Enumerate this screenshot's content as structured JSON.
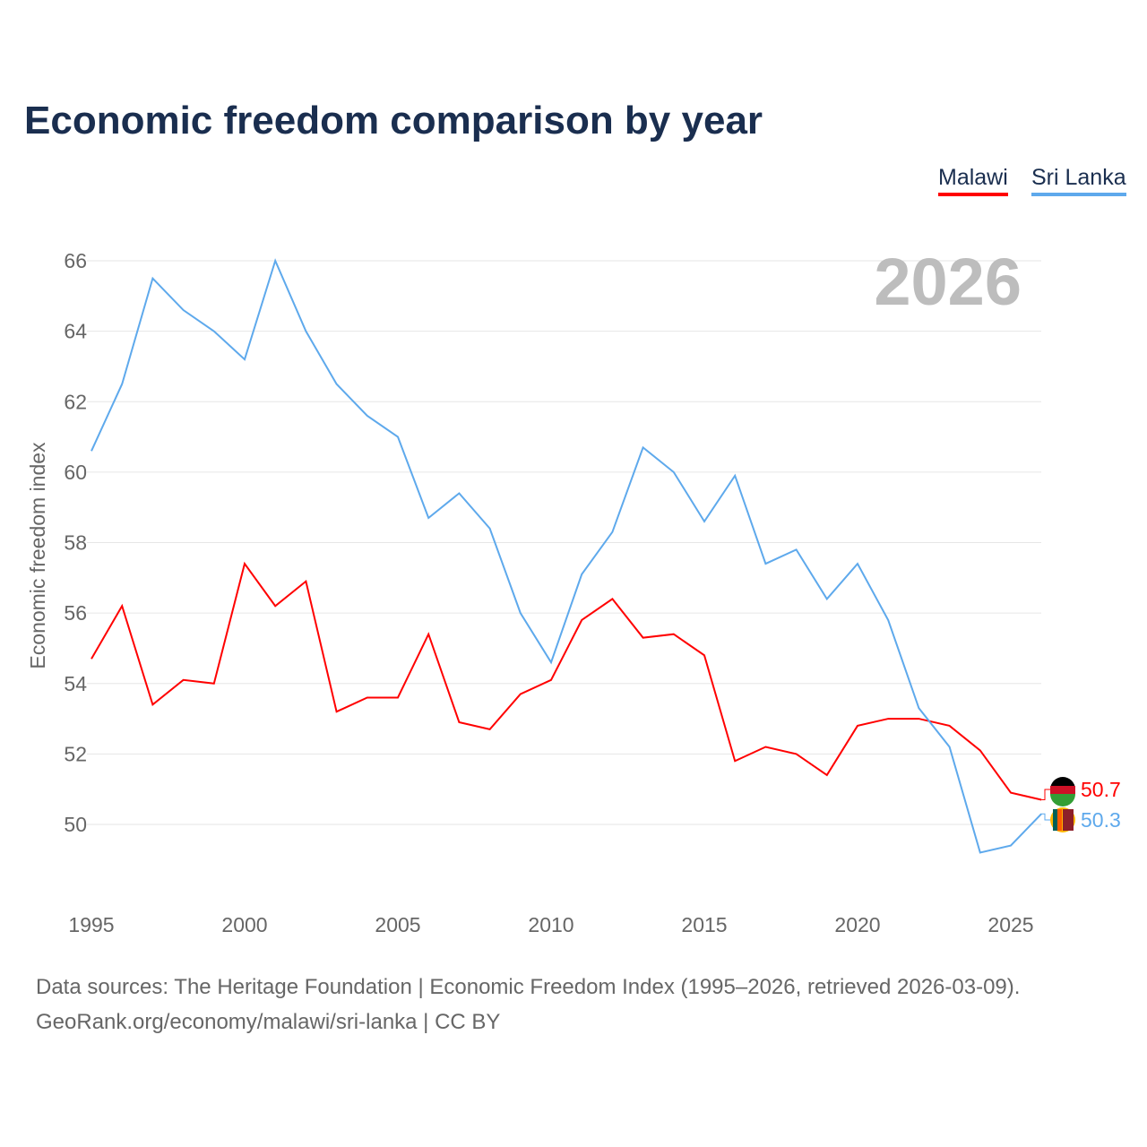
{
  "title": "Economic freedom comparison by year",
  "footer": {
    "line1": "Data sources: The Heritage Foundation | Economic Freedom Index (1995–2026, retrieved 2026-03-09).",
    "line2": "GeoRank.org/economy/malawi/sri-lanka | CC BY"
  },
  "chart_data": {
    "type": "line",
    "title": "Economic freedom comparison by year",
    "ylabel": "Economic freedom index",
    "xlabel": "",
    "year_watermark": "2026",
    "xlim": [
      1995,
      2026
    ],
    "ylim": [
      48,
      67
    ],
    "yticks": [
      50,
      52,
      54,
      56,
      58,
      60,
      62,
      64,
      66
    ],
    "xticks": [
      1995,
      2000,
      2005,
      2010,
      2015,
      2020,
      2025
    ],
    "grid": true,
    "legend": "top-right",
    "x": [
      1995,
      1996,
      1997,
      1998,
      1999,
      2000,
      2001,
      2002,
      2003,
      2004,
      2005,
      2006,
      2007,
      2008,
      2009,
      2010,
      2011,
      2012,
      2013,
      2014,
      2015,
      2016,
      2017,
      2018,
      2019,
      2020,
      2021,
      2022,
      2023,
      2024,
      2025,
      2026
    ],
    "series": [
      {
        "name": "Malawi",
        "color": "#ff0000",
        "end_label": "50.7",
        "values": [
          54.7,
          56.2,
          53.4,
          54.1,
          54.0,
          57.4,
          56.2,
          56.9,
          53.2,
          53.6,
          53.6,
          55.4,
          52.9,
          52.7,
          53.7,
          54.1,
          55.8,
          56.4,
          55.3,
          55.4,
          54.8,
          51.8,
          52.2,
          52.0,
          51.4,
          52.8,
          53.0,
          53.0,
          52.8,
          52.1,
          50.9,
          50.7
        ]
      },
      {
        "name": "Sri Lanka",
        "color": "#5ea9ec",
        "end_label": "50.3",
        "values": [
          60.6,
          62.5,
          65.5,
          64.6,
          64.0,
          63.2,
          66.0,
          64.0,
          62.5,
          61.6,
          61.0,
          58.7,
          59.4,
          58.4,
          56.0,
          54.6,
          57.1,
          58.3,
          60.7,
          60.0,
          58.6,
          59.9,
          57.4,
          57.8,
          56.4,
          57.4,
          55.8,
          53.3,
          52.2,
          49.2,
          49.4,
          50.3
        ]
      }
    ]
  }
}
